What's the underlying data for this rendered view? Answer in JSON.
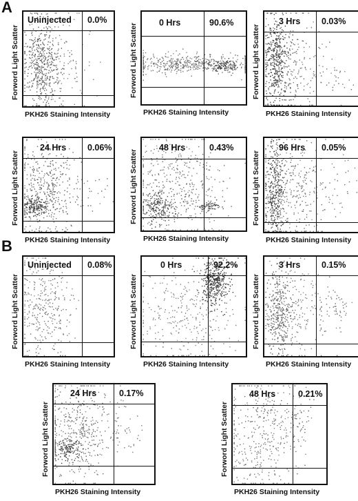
{
  "panels": [
    {
      "letter": "A"
    },
    {
      "letter": "B"
    }
  ],
  "chart_data": [
    {
      "type": "scatter",
      "panel": "A",
      "time": "Uninjected",
      "percent": "0.0%",
      "xlabel": "PKH26 Staining Intensity",
      "ylabel": "Forword Light Scatter"
    },
    {
      "type": "scatter",
      "panel": "A",
      "time": "0 Hrs",
      "percent": "90.6%",
      "xlabel": "PKH26 Staining Intensity",
      "ylabel": "Forword Light Scatter"
    },
    {
      "type": "scatter",
      "panel": "A",
      "time": "3 Hrs",
      "percent": "0.03%",
      "xlabel": "PKH26 Staining Intensity",
      "ylabel": "Forword Light Scatter"
    },
    {
      "type": "scatter",
      "panel": "A",
      "time": "24 Hrs",
      "percent": "0.06%",
      "xlabel": "PKH26 Staining Intensity",
      "ylabel": "Forword Light Scatter"
    },
    {
      "type": "scatter",
      "panel": "A",
      "time": "48 Hrs",
      "percent": "0.43%",
      "xlabel": "PKH26 Staining Intensity",
      "ylabel": "Forword Light Scatter"
    },
    {
      "type": "scatter",
      "panel": "A",
      "time": "96 Hrs",
      "percent": "0.05%",
      "xlabel": "PKH26 Staining Intensity",
      "ylabel": "Forword Light Scatter"
    },
    {
      "type": "scatter",
      "panel": "B",
      "time": "Uninjected",
      "percent": "0.08%",
      "xlabel": "PKH26 Staining Intensity",
      "ylabel": "Forword Light Scatter"
    },
    {
      "type": "scatter",
      "panel": "B",
      "time": "0 Hrs",
      "percent": "92.2%",
      "xlabel": "PKH26 Staining Intensity",
      "ylabel": "Forword Light Scatter"
    },
    {
      "type": "scatter",
      "panel": "B",
      "time": "3 Hrs",
      "percent": "0.15%",
      "xlabel": "PKH26 Staining Intensity",
      "ylabel": "Forword Light Scatter"
    },
    {
      "type": "scatter",
      "panel": "B",
      "time": "24 Hrs",
      "percent": "0.17%",
      "xlabel": "PKH26 Staining Intensity",
      "ylabel": "Forword Light Scatter"
    },
    {
      "type": "scatter",
      "panel": "B",
      "time": "48 Hrs",
      "percent": "0.21%",
      "xlabel": "PKH26 Staining Intensity",
      "ylabel": "Forword Light Scatter"
    }
  ]
}
